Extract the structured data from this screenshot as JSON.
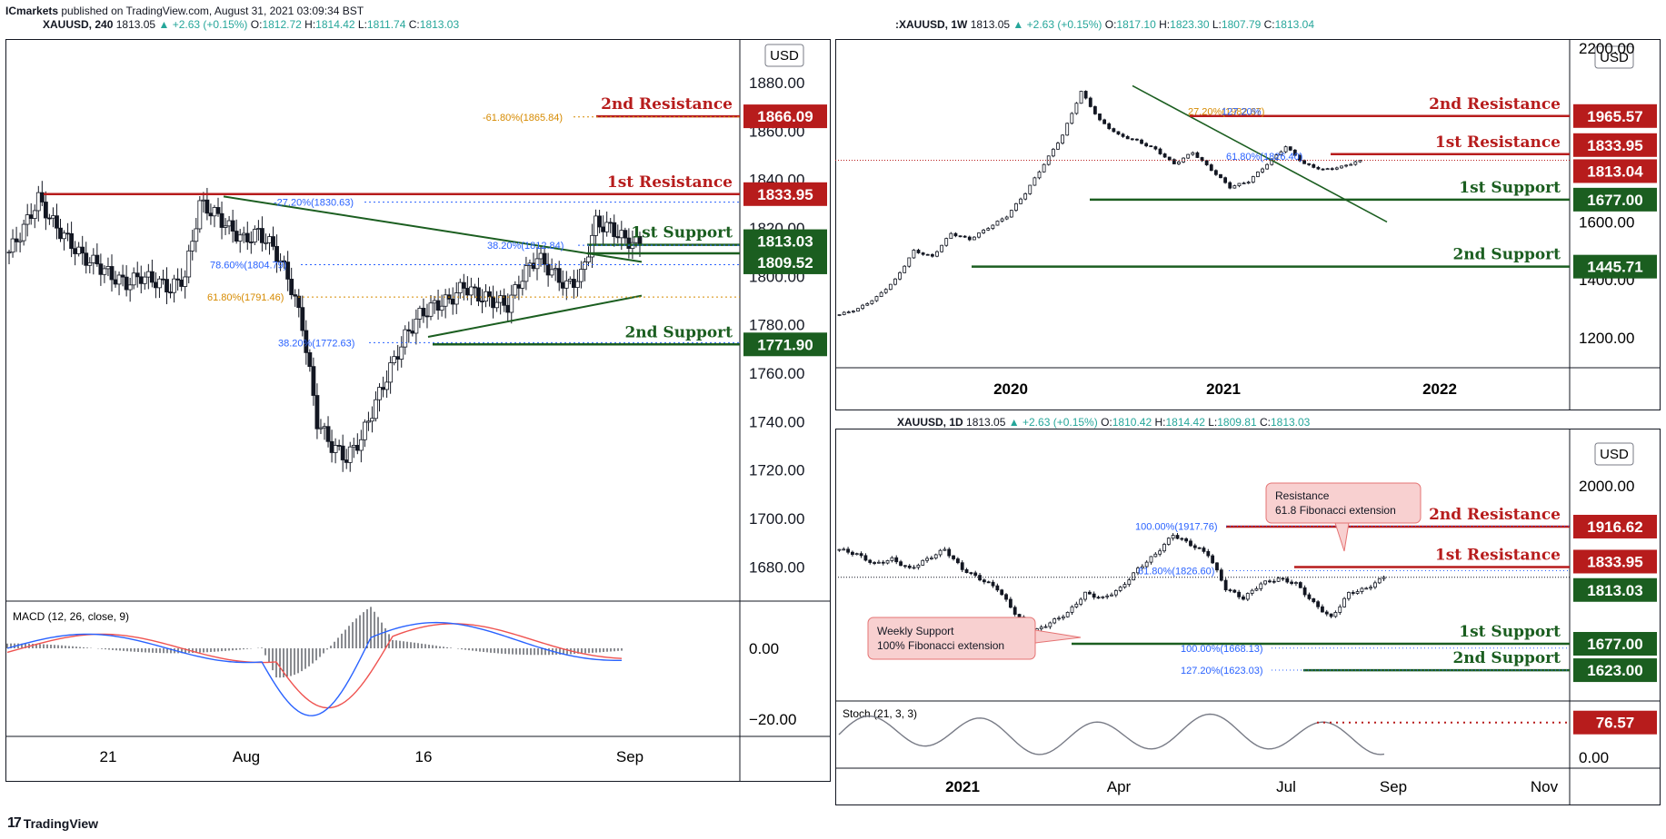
{
  "header": {
    "publisher": "ICmarkets",
    "text": " published on TradingView.com, August 31, 2021 03:09:34 BST"
  },
  "footer": {
    "brand": "TradingView"
  },
  "colors": {
    "resistance": "#b71c1c",
    "support": "#1b5e20",
    "fib_blue": "#2962ff",
    "fib_orange": "#d68a00",
    "up": "#26a69a"
  },
  "panels": {
    "h4": {
      "legend": {
        "symbol": "XAUUSD, 240",
        "price": "1813.05",
        "change": "+2.63 (+0.15%)",
        "open": "1812.72",
        "high": "1814.42",
        "low": "1811.74",
        "close": "1813.03"
      },
      "currency": "USD",
      "y_ticks": [
        "1880.00",
        "1860.00",
        "1840.00",
        "1820.00",
        "1800.00",
        "1780.00",
        "1760.00",
        "1740.00",
        "1720.00",
        "1700.00",
        "1680.00"
      ],
      "x_ticks": [
        "21",
        "Aug",
        "16",
        "Sep"
      ],
      "levels": [
        {
          "label": "2nd Resistance",
          "value": "1866.09",
          "kind": "resistance"
        },
        {
          "label": "1st Resistance",
          "value": "1833.95",
          "kind": "resistance"
        },
        {
          "label": "1st Support",
          "value": "1813.03",
          "kind": "support"
        },
        {
          "label": "",
          "value": "1809.52",
          "kind": "support"
        },
        {
          "label": "2nd Support",
          "value": "1771.90",
          "kind": "support"
        }
      ],
      "fibs": [
        "-61.80%(1865.84)",
        "-27.20%(1830.63)",
        "38.20%(1812.84)",
        "78.60%(1804.79)",
        "61.80%(1791.46)",
        "38.20%(1772.63)"
      ],
      "macd": {
        "label": "MACD (12, 26, close, 9)",
        "ticks": [
          "0.00",
          "−20.00"
        ]
      }
    },
    "w1": {
      "legend": {
        "symbol": ":XAUUSD, 1W",
        "price": "1813.05",
        "change": "+2.63 (+0.15%)",
        "open": "1817.10",
        "high": "1823.30",
        "low": "1807.79",
        "close": "1813.04"
      },
      "currency": "USD",
      "y_ticks": [
        "2200.00",
        "1600.00",
        "1400.00",
        "1200.00"
      ],
      "x_ticks": [
        "2020",
        "2021",
        "2022"
      ],
      "levels": [
        {
          "label": "2nd Resistance",
          "value": "1965.57",
          "kind": "resistance"
        },
        {
          "label": "1st Resistance",
          "value": "1833.95",
          "kind": "resistance"
        },
        {
          "label": "",
          "value": "1813.04",
          "kind": "resistance"
        },
        {
          "label": "1st Support",
          "value": "1677.00",
          "kind": "support"
        },
        {
          "label": "2nd Support",
          "value": "1445.71",
          "kind": "support"
        }
      ],
      "fibs": [
        "27.20%(1982.67)",
        "127.20%",
        "61.80%(1826.40)"
      ]
    },
    "d1": {
      "legend": {
        "symbol": "XAUUSD, 1D",
        "price": "1813.05",
        "change": "+2.63 (+0.15%)",
        "open": "1810.42",
        "high": "1814.42",
        "low": "1809.81",
        "close": "1813.03"
      },
      "currency": "USD",
      "y_ticks": [
        "2000.00",
        "0.00"
      ],
      "x_ticks": [
        "2021",
        "Apr",
        "Jul",
        "Sep",
        "Nov"
      ],
      "levels": [
        {
          "label": "2nd Resistance",
          "value": "1916.62",
          "kind": "resistance"
        },
        {
          "label": "1st Resistance",
          "value": "1833.95",
          "kind": "resistance"
        },
        {
          "label": "",
          "value": "1813.03",
          "kind": "support"
        },
        {
          "label": "1st Support",
          "value": "1677.00",
          "kind": "support"
        },
        {
          "label": "2nd Support",
          "value": "1623.00",
          "kind": "support"
        }
      ],
      "fibs": [
        "100.00%(1917.76)",
        "61.80%(1826.60)",
        "100.00%(1668.13)",
        "127.20%(1623.03)"
      ],
      "callouts": {
        "resistance": [
          "Resistance",
          "61.8 Fibonacci extension"
        ],
        "support": [
          "Weekly Support",
          "100% Fibonacci extension"
        ]
      },
      "stoch": {
        "label": "Stoch (21, 3, 3)",
        "value": "76.57"
      }
    }
  },
  "chart_data": [
    {
      "type": "candlestick",
      "title": "XAUUSD, 240",
      "ylim": [
        1670,
        1895
      ],
      "x_ticks": [
        "21",
        "Aug",
        "16",
        "Sep"
      ],
      "levels": {
        "2nd Resistance": 1866.09,
        "1st Resistance": 1833.95,
        "1st Support": 1813.03,
        "1809.52": 1809.52,
        "2nd Support": 1771.9
      },
      "close_path": [
        1810,
        1820,
        1832,
        1822,
        1815,
        1808,
        1805,
        1800,
        1797,
        1800,
        1798,
        1795,
        1800,
        1830,
        1826,
        1820,
        1815,
        1818,
        1812,
        1800,
        1780,
        1740,
        1730,
        1725,
        1733,
        1748,
        1762,
        1775,
        1784,
        1788,
        1790,
        1796,
        1792,
        1790,
        1788,
        1800,
        1808,
        1802,
        1796,
        1800,
        1822,
        1820,
        1815,
        1813
      ],
      "indicator": {
        "name": "MACD (12, 26, close, 9)",
        "ticks": [
          0,
          -20
        ]
      }
    },
    {
      "type": "candlestick",
      "title": ":XAUUSD, 1W",
      "ylim": [
        1150,
        2200
      ],
      "x_ticks": [
        "2020",
        "2021",
        "2022"
      ],
      "levels": {
        "2nd Resistance": 1965.57,
        "1st Resistance": 1833.95,
        "1813.04": 1813.04,
        "1st Support": 1677.0,
        "2nd Support": 1445.71
      },
      "close_path": [
        1280,
        1300,
        1340,
        1400,
        1500,
        1480,
        1560,
        1540,
        1580,
        1620,
        1700,
        1800,
        1900,
        2050,
        1950,
        1900,
        1880,
        1850,
        1800,
        1840,
        1780,
        1720,
        1740,
        1800,
        1860,
        1800,
        1780,
        1790,
        1813
      ]
    },
    {
      "type": "candlestick",
      "title": "XAUUSD, 1D",
      "ylim": [
        1560,
        2080
      ],
      "x_ticks": [
        "2021",
        "Apr",
        "Jul",
        "Sep",
        "Nov"
      ],
      "levels": {
        "2nd Resistance": 1916.62,
        "1st Resistance": 1833.95,
        "1813.03": 1813.03,
        "1st Support": 1677.0,
        "2nd Support": 1623.0
      },
      "close_path": [
        1870,
        1860,
        1840,
        1850,
        1830,
        1850,
        1870,
        1830,
        1810,
        1790,
        1740,
        1700,
        1720,
        1740,
        1780,
        1770,
        1790,
        1830,
        1860,
        1900,
        1880,
        1860,
        1790,
        1770,
        1800,
        1810,
        1800,
        1760,
        1730,
        1780,
        1790,
        1813
      ],
      "indicator": {
        "name": "Stoch (21, 3, 3)",
        "ticks": [
          0
        ],
        "last": 76.57
      }
    }
  ]
}
